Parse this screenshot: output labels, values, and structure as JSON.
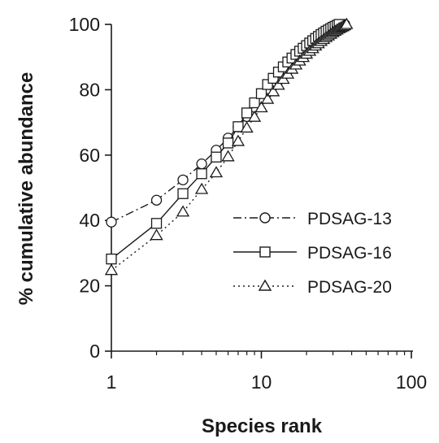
{
  "chart_data": {
    "type": "line",
    "xscale": "log",
    "xlabel": "Species rank",
    "ylabel": "% cumulative abundance",
    "xlim": [
      1,
      100
    ],
    "ylim": [
      0,
      100
    ],
    "xticks": [
      "1",
      "10",
      "100"
    ],
    "yticks": [
      "0",
      "20",
      "40",
      "60",
      "80",
      "100"
    ],
    "grid": false,
    "legend_position": "right-center",
    "series": [
      {
        "name": "PDSAG-13",
        "marker": "circle",
        "linestyle": "dash-dot",
        "points": [
          [
            1,
            39.5
          ],
          [
            2,
            46.2
          ],
          [
            3,
            52.4
          ],
          [
            4,
            57.3
          ],
          [
            5,
            61.5
          ],
          [
            6,
            65.2
          ],
          [
            7,
            68.6
          ],
          [
            8,
            71.8
          ],
          [
            9,
            74.6
          ],
          [
            10,
            77.1
          ],
          [
            11,
            79.2
          ],
          [
            12,
            81.2
          ],
          [
            13,
            82.9
          ],
          [
            14,
            84.5
          ],
          [
            15,
            85.9
          ],
          [
            16,
            87.2
          ],
          [
            17,
            88.4
          ],
          [
            18,
            89.5
          ],
          [
            19,
            90.5
          ],
          [
            20,
            91.4
          ],
          [
            21,
            92.3
          ],
          [
            22,
            93.1
          ],
          [
            23,
            93.9
          ],
          [
            24,
            94.6
          ],
          [
            25,
            95.3
          ],
          [
            26,
            95.9
          ],
          [
            27,
            96.5
          ],
          [
            28,
            97.0
          ],
          [
            29,
            97.5
          ],
          [
            30,
            98.0
          ],
          [
            31,
            98.4
          ],
          [
            32,
            98.8
          ],
          [
            33,
            99.2
          ],
          [
            34,
            99.5
          ],
          [
            35,
            99.8
          ],
          [
            36,
            100
          ]
        ]
      },
      {
        "name": "PDSAG-16",
        "marker": "square",
        "linestyle": "solid",
        "points": [
          [
            1,
            28.2
          ],
          [
            2,
            39.1
          ],
          [
            3,
            48.2
          ],
          [
            4,
            54.3
          ],
          [
            5,
            59.4
          ],
          [
            6,
            63.7
          ],
          [
            7,
            68.7
          ],
          [
            8,
            72.9
          ],
          [
            9,
            76.0
          ],
          [
            10,
            78.8
          ],
          [
            11,
            81.6
          ],
          [
            12,
            83.5
          ],
          [
            13,
            85.4
          ],
          [
            14,
            87.0
          ],
          [
            15,
            88.5
          ],
          [
            16,
            89.7
          ],
          [
            17,
            90.8
          ],
          [
            18,
            91.8
          ],
          [
            19,
            92.7
          ],
          [
            20,
            93.5
          ],
          [
            21,
            94.3
          ],
          [
            22,
            95.0
          ],
          [
            23,
            95.7
          ],
          [
            24,
            96.3
          ],
          [
            25,
            96.9
          ],
          [
            26,
            97.4
          ],
          [
            27,
            97.9
          ],
          [
            28,
            98.3
          ],
          [
            29,
            98.7
          ],
          [
            30,
            99.1
          ],
          [
            31,
            99.4
          ],
          [
            32,
            99.7
          ],
          [
            33,
            100
          ]
        ]
      },
      {
        "name": "PDSAG-20",
        "marker": "triangle",
        "linestyle": "dotted",
        "points": [
          [
            1,
            24.7
          ],
          [
            2,
            35.4
          ],
          [
            3,
            42.6
          ],
          [
            4,
            49.5
          ],
          [
            5,
            54.6
          ],
          [
            6,
            59.5
          ],
          [
            7,
            64.2
          ],
          [
            8,
            68.3
          ],
          [
            9,
            71.6
          ],
          [
            10,
            74.5
          ],
          [
            11,
            77.1
          ],
          [
            12,
            79.4
          ],
          [
            13,
            81.4
          ],
          [
            14,
            83.2
          ],
          [
            15,
            84.8
          ],
          [
            16,
            86.3
          ],
          [
            17,
            87.6
          ],
          [
            18,
            88.8
          ],
          [
            19,
            89.9
          ],
          [
            20,
            90.9
          ],
          [
            21,
            91.8
          ],
          [
            22,
            92.6
          ],
          [
            23,
            93.4
          ],
          [
            24,
            94.1
          ],
          [
            25,
            94.8
          ],
          [
            26,
            95.4
          ],
          [
            27,
            96.0
          ],
          [
            28,
            96.5
          ],
          [
            29,
            97.0
          ],
          [
            30,
            97.5
          ],
          [
            31,
            97.9
          ],
          [
            32,
            98.3
          ],
          [
            33,
            98.7
          ],
          [
            34,
            99.0
          ],
          [
            35,
            99.3
          ],
          [
            36,
            99.6
          ],
          [
            37,
            100
          ]
        ]
      }
    ]
  }
}
